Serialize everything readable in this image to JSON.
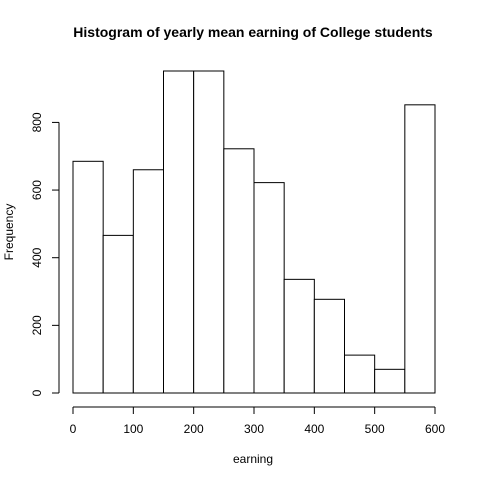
{
  "chart_data": {
    "type": "bar",
    "title": "Histogram of yearly mean earning of College students",
    "xlabel": "earning",
    "ylabel": "Frequency",
    "bins": [
      {
        "from": 0,
        "to": 50,
        "count": 685
      },
      {
        "from": 50,
        "to": 100,
        "count": 466
      },
      {
        "from": 100,
        "to": 150,
        "count": 660
      },
      {
        "from": 150,
        "to": 200,
        "count": 952
      },
      {
        "from": 200,
        "to": 250,
        "count": 952
      },
      {
        "from": 250,
        "to": 300,
        "count": 722
      },
      {
        "from": 300,
        "to": 350,
        "count": 622
      },
      {
        "from": 350,
        "to": 400,
        "count": 336
      },
      {
        "from": 400,
        "to": 450,
        "count": 277
      },
      {
        "from": 450,
        "to": 500,
        "count": 112
      },
      {
        "from": 500,
        "to": 550,
        "count": 70
      },
      {
        "from": 550,
        "to": 600,
        "count": 852
      }
    ],
    "xlim": [
      0,
      600
    ],
    "ylim": [
      0,
      952
    ],
    "xticks": [
      0,
      100,
      200,
      300,
      400,
      500,
      600
    ],
    "yticks": [
      0,
      200,
      400,
      600,
      800
    ],
    "grid": false,
    "legend": "none",
    "bar_fill": "#ffffff",
    "bar_stroke": "#000000"
  }
}
